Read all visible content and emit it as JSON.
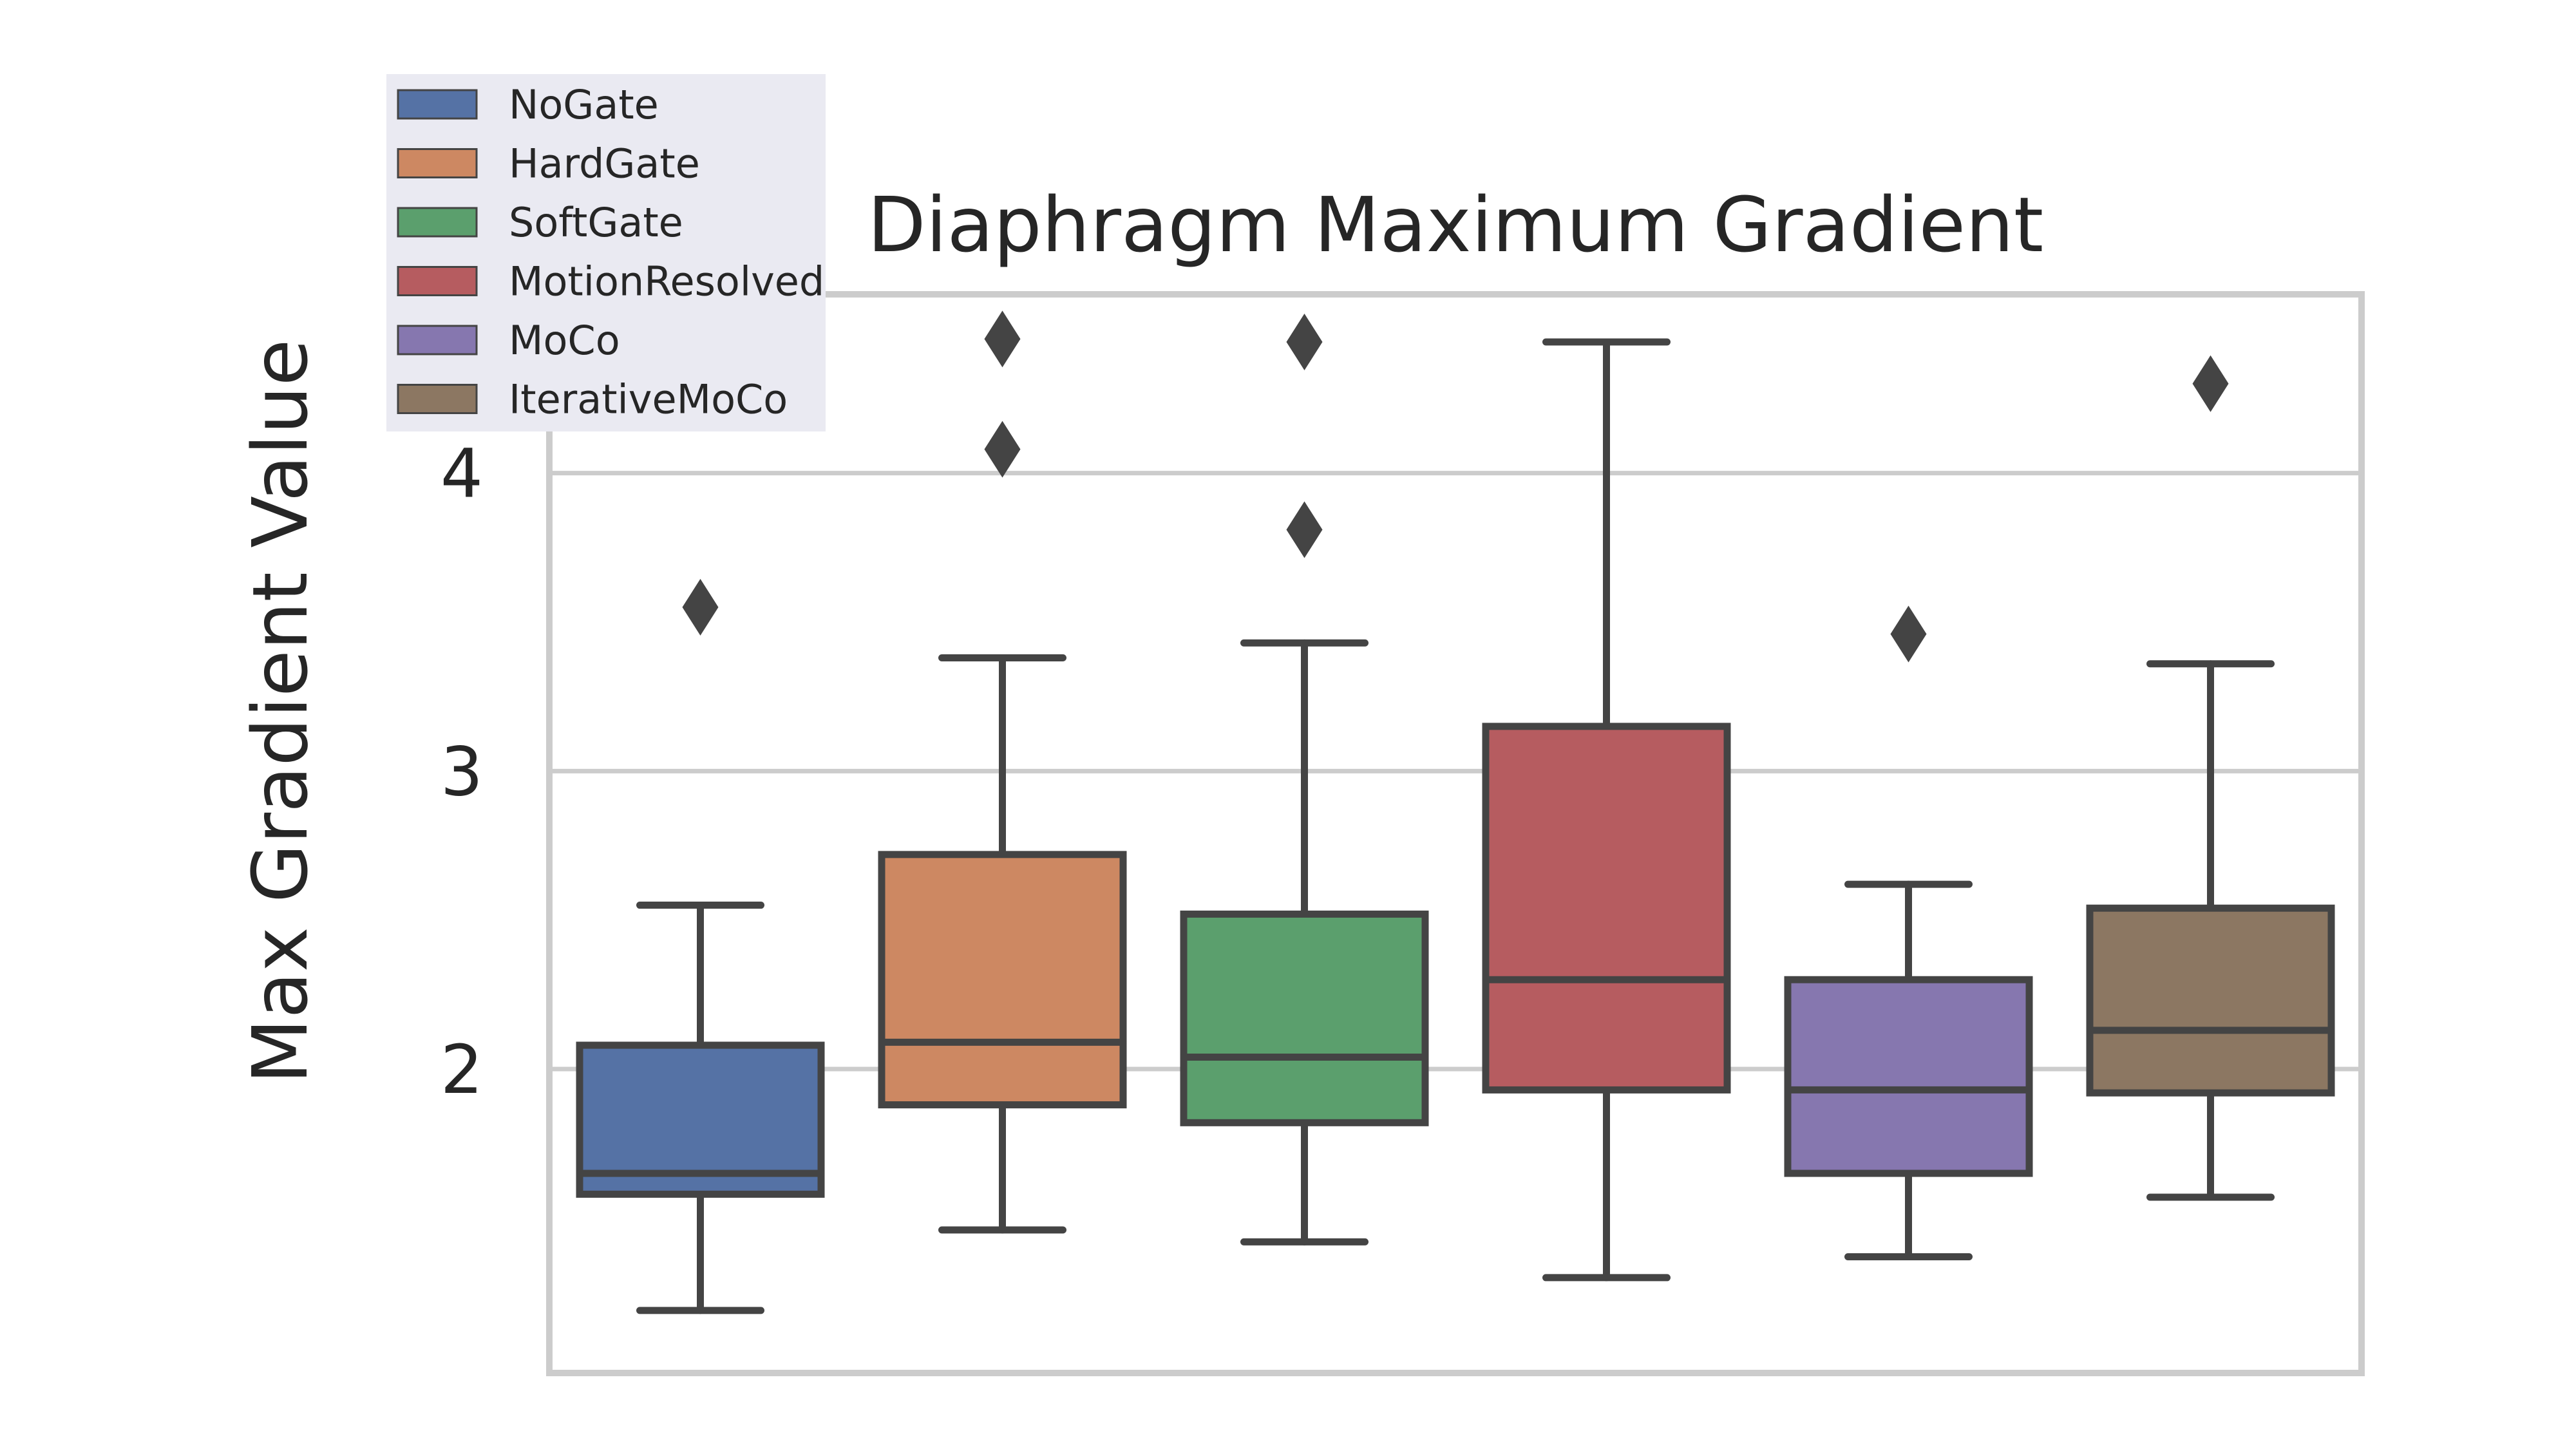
{
  "chart_data": {
    "type": "box",
    "title": "Diaphragm Maximum Gradient",
    "xlabel": "",
    "ylabel": "Max Gradient Value",
    "ylim": [
      0.98,
      4.6
    ],
    "yticks": [
      2,
      3,
      4
    ],
    "grid": true,
    "legend_position": "top-left",
    "series": [
      {
        "name": "NoGate",
        "color": "#5572a5",
        "whisker_low": 1.19,
        "q1": 1.58,
        "median": 1.65,
        "q3": 2.08,
        "whisker_high": 2.55,
        "fliers": [
          3.55
        ]
      },
      {
        "name": "HardGate",
        "color": "#cd8862",
        "whisker_low": 1.46,
        "q1": 1.88,
        "median": 2.09,
        "q3": 2.72,
        "whisker_high": 3.38,
        "fliers": [
          4.08,
          4.45
        ]
      },
      {
        "name": "SoftGate",
        "color": "#5b9f6d",
        "whisker_low": 1.42,
        "q1": 1.82,
        "median": 2.04,
        "q3": 2.52,
        "whisker_high": 3.43,
        "fliers": [
          3.81,
          4.44
        ]
      },
      {
        "name": "MotionResolved",
        "color": "#b65c60",
        "whisker_low": 1.3,
        "q1": 1.93,
        "median": 2.3,
        "q3": 3.15,
        "whisker_high": 4.44,
        "fliers": []
      },
      {
        "name": "MoCo",
        "color": "#8677af",
        "whisker_low": 1.37,
        "q1": 1.65,
        "median": 1.93,
        "q3": 2.3,
        "whisker_high": 2.62,
        "fliers": [
          3.46
        ]
      },
      {
        "name": "IterativeMoCo",
        "color": "#8c7762",
        "whisker_low": 1.57,
        "q1": 1.92,
        "median": 2.13,
        "q3": 2.54,
        "whisker_high": 3.36,
        "fliers": [
          4.3
        ]
      }
    ]
  }
}
